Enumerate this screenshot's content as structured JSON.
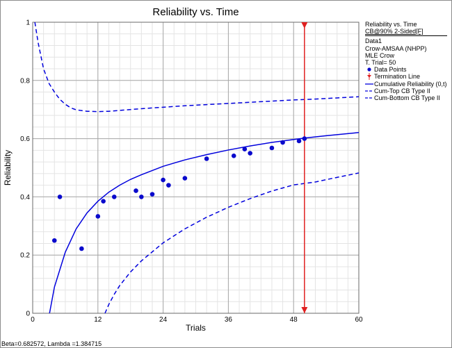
{
  "chart_data": {
    "type": "scatter",
    "title": "Reliability vs. Time",
    "xlabel": "Trials",
    "ylabel": "Reliability",
    "xlim": [
      0,
      60
    ],
    "ylim": [
      0,
      1
    ],
    "x_ticks": [
      "0",
      "12",
      "24",
      "36",
      "48",
      "60"
    ],
    "y_ticks": [
      "0",
      "0.2",
      "0.4",
      "0.6",
      "0.8",
      "1"
    ],
    "grid": true,
    "legend_position": "right",
    "termination_trial": 50,
    "series": [
      {
        "name": "Data Points",
        "type": "scatter",
        "color": "#0a0acc",
        "points": [
          [
            4,
            0.25
          ],
          [
            5,
            0.4
          ],
          [
            9,
            0.222
          ],
          [
            12,
            0.333
          ],
          [
            13,
            0.385
          ],
          [
            15,
            0.4
          ],
          [
            19,
            0.421
          ],
          [
            20,
            0.4
          ],
          [
            22,
            0.409
          ],
          [
            24,
            0.458
          ],
          [
            25,
            0.44
          ],
          [
            28,
            0.464
          ],
          [
            32,
            0.531
          ],
          [
            37,
            0.541
          ],
          [
            39,
            0.564
          ],
          [
            40,
            0.55
          ],
          [
            44,
            0.568
          ],
          [
            46,
            0.587
          ],
          [
            49,
            0.592
          ],
          [
            50,
            0.6
          ]
        ]
      },
      {
        "name": "Termination Line",
        "type": "vline",
        "color": "#e02020",
        "x": 50
      },
      {
        "name": "Cumulative Reliability (0,t)",
        "type": "line",
        "color": "#0000dd",
        "points": [
          [
            3.1,
            0.0
          ],
          [
            4,
            0.09
          ],
          [
            6,
            0.21
          ],
          [
            8,
            0.29
          ],
          [
            10,
            0.345
          ],
          [
            12,
            0.385
          ],
          [
            14,
            0.416
          ],
          [
            16,
            0.44
          ],
          [
            18,
            0.46
          ],
          [
            20,
            0.476
          ],
          [
            24,
            0.505
          ],
          [
            28,
            0.527
          ],
          [
            32,
            0.545
          ],
          [
            36,
            0.561
          ],
          [
            40,
            0.575
          ],
          [
            44,
            0.587
          ],
          [
            48,
            0.597
          ],
          [
            50,
            0.602
          ],
          [
            54,
            0.61
          ],
          [
            60,
            0.621
          ]
        ]
      },
      {
        "name": "Cum-Top CB Type II",
        "type": "line",
        "dashed": true,
        "color": "#0000dd",
        "points": [
          [
            0.4,
            1.0
          ],
          [
            1,
            0.93
          ],
          [
            2,
            0.84
          ],
          [
            3,
            0.79
          ],
          [
            4,
            0.76
          ],
          [
            5,
            0.735
          ],
          [
            6,
            0.718
          ],
          [
            7,
            0.706
          ],
          [
            8,
            0.699
          ],
          [
            10,
            0.694
          ],
          [
            12,
            0.693
          ],
          [
            14,
            0.694
          ],
          [
            16,
            0.697
          ],
          [
            20,
            0.703
          ],
          [
            24,
            0.708
          ],
          [
            28,
            0.713
          ],
          [
            32,
            0.717
          ],
          [
            36,
            0.721
          ],
          [
            40,
            0.725
          ],
          [
            44,
            0.729
          ],
          [
            48,
            0.733
          ],
          [
            52,
            0.736
          ],
          [
            56,
            0.74
          ],
          [
            60,
            0.744
          ]
        ]
      },
      {
        "name": "Cum-Bottom CB Type II",
        "type": "line",
        "dashed": true,
        "color": "#0000dd",
        "points": [
          [
            13.3,
            0.0
          ],
          [
            14,
            0.03
          ],
          [
            15,
            0.065
          ],
          [
            16,
            0.095
          ],
          [
            18,
            0.142
          ],
          [
            20,
            0.18
          ],
          [
            24,
            0.242
          ],
          [
            28,
            0.29
          ],
          [
            32,
            0.33
          ],
          [
            36,
            0.364
          ],
          [
            40,
            0.394
          ],
          [
            44,
            0.42
          ],
          [
            48,
            0.441
          ],
          [
            52,
            0.451
          ],
          [
            56,
            0.467
          ],
          [
            60,
            0.482
          ]
        ]
      }
    ]
  },
  "legend": {
    "title": "Reliability vs. Time",
    "subtitle": "CB@90% 2-Sided[F]",
    "info": [
      "Data1",
      "Crow-AMSAA (NHPP)",
      "MLE Crow",
      "T. Trial= 50"
    ],
    "items": [
      {
        "label": "Data Points",
        "icon": "dot-marker"
      },
      {
        "label": "Termination Line",
        "icon": "red-triangle-line"
      },
      {
        "label": "Cumulative Reliability (0,t)",
        "icon": "solid-line"
      },
      {
        "label": "Cum-Top CB Type II",
        "icon": "dashed-line"
      },
      {
        "label": "Cum-Bottom CB Type II",
        "icon": "dashed-line"
      }
    ]
  },
  "status_bar": {
    "text": "Beta=0.682572, Lambda =1.384715"
  }
}
